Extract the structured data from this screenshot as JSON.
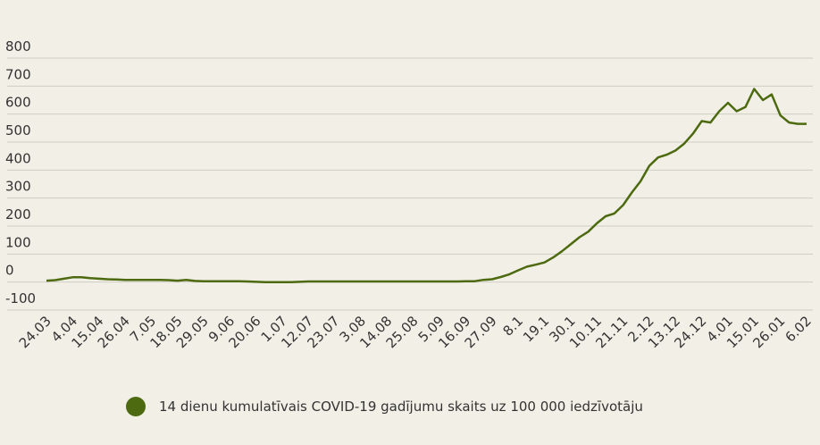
{
  "chart_data": {
    "type": "line",
    "categories": [
      "24.03",
      null,
      null,
      "4.04",
      null,
      null,
      "15.04",
      null,
      null,
      "26.04",
      null,
      null,
      "7.05",
      null,
      null,
      "18.05",
      null,
      null,
      "29.05",
      null,
      null,
      "9.06",
      null,
      null,
      "20.06",
      null,
      null,
      "1.07",
      null,
      null,
      "12.07",
      null,
      null,
      "23.07",
      null,
      null,
      "3.08",
      null,
      null,
      "14.08",
      null,
      null,
      "25.08",
      null,
      null,
      "5.09",
      null,
      null,
      "16.09",
      null,
      null,
      "27.09",
      null,
      null,
      "8.1",
      null,
      null,
      "19.1",
      null,
      null,
      "30.1",
      null,
      null,
      "10.11",
      null,
      null,
      "21.11",
      null,
      null,
      "2.12",
      null,
      null,
      "13.12",
      null,
      null,
      "24.12",
      null,
      null,
      "4.01",
      null,
      null,
      "15.01",
      null,
      null,
      "26.01",
      null,
      null,
      "6.02"
    ],
    "series": [
      {
        "name": "14 dienu kumulatīvais COVID-19 gadījumu skaits uz 100 000 iedzīvotāju",
        "color": "#4d6a10",
        "values": [
          5,
          7,
          12,
          17,
          17,
          14,
          12,
          10,
          9,
          8,
          8,
          8,
          8,
          8,
          7,
          5,
          8,
          4,
          3,
          3,
          3,
          3,
          3,
          2,
          1,
          0,
          0,
          0,
          0,
          1,
          2,
          2,
          2,
          2,
          2,
          2,
          2,
          2,
          2,
          2,
          2,
          2,
          2,
          2,
          2,
          2,
          2,
          2,
          3,
          3,
          8,
          10,
          18,
          28,
          42,
          55,
          62,
          70,
          88,
          110,
          135,
          160,
          180,
          210,
          235,
          245,
          275,
          320,
          360,
          415,
          445,
          455,
          470,
          495,
          530,
          575,
          570,
          610,
          640,
          610,
          625,
          690,
          650,
          670,
          595,
          570,
          565,
          565
        ]
      }
    ],
    "ylim": [
      -100,
      800
    ],
    "yticks": [
      -100,
      0,
      100,
      200,
      300,
      400,
      500,
      600,
      700,
      800
    ],
    "grid": true
  }
}
